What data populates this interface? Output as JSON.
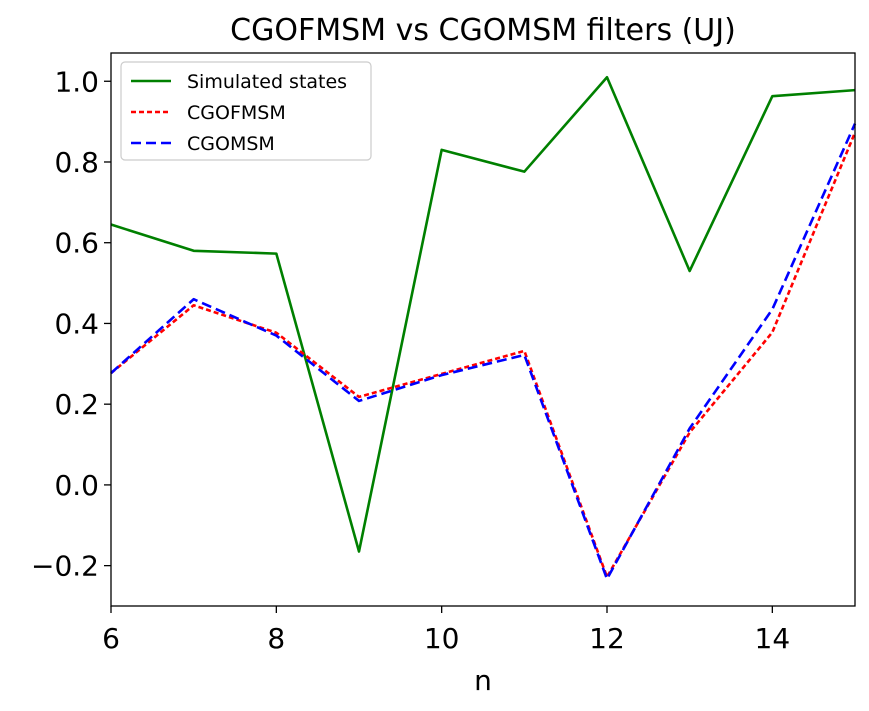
{
  "chart_data": {
    "type": "line",
    "title": "CGOFMSM vs CGOMSM filters (UJ)",
    "xlabel": "n",
    "ylabel": "",
    "xlim": [
      6,
      15
    ],
    "ylim": [
      -0.3,
      1.07
    ],
    "xticks": [
      6,
      8,
      10,
      12,
      14
    ],
    "yticks": [
      -0.2,
      0.0,
      0.2,
      0.4,
      0.6,
      0.8,
      1.0
    ],
    "ytick_labels": [
      "−0.2",
      "0.0",
      "0.2",
      "0.4",
      "0.6",
      "0.8",
      "1.0"
    ],
    "grid": false,
    "legend_position": "top-left",
    "x": [
      6,
      7,
      8,
      9,
      10,
      11,
      12,
      13,
      14,
      15
    ],
    "series": [
      {
        "name": "Simulated states",
        "color": "#008000",
        "dash": "solid",
        "values": [
          0.645,
          0.58,
          0.573,
          -0.165,
          0.83,
          0.776,
          1.01,
          0.53,
          0.963,
          0.978
        ]
      },
      {
        "name": "CGOFMSM",
        "color": "#ff0000",
        "dash": "dotted",
        "values": [
          0.277,
          0.445,
          0.377,
          0.218,
          0.275,
          0.332,
          -0.228,
          0.13,
          0.378,
          0.873
        ]
      },
      {
        "name": "CGOMSM",
        "color": "#0000ff",
        "dash": "dashed",
        "values": [
          0.277,
          0.46,
          0.37,
          0.208,
          0.272,
          0.322,
          -0.233,
          0.14,
          0.435,
          0.895
        ]
      }
    ]
  }
}
